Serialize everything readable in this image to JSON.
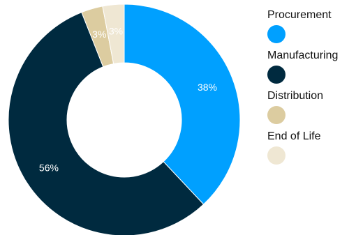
{
  "chart_data": {
    "type": "pie",
    "donut": true,
    "legend_position": "right",
    "slices": [
      {
        "name": "Procurement",
        "value": 38,
        "label": "38%",
        "color": "#00a0ff",
        "label_color": "#ffffff"
      },
      {
        "name": "Manufacturing",
        "value": 56,
        "label": "56%",
        "color": "#002a3f",
        "label_color": "#ffffff"
      },
      {
        "name": "Distribution",
        "value": 3,
        "label": "3%",
        "color": "#dccca0",
        "label_color": "#ffffff"
      },
      {
        "name": "End of Life",
        "value": 3,
        "label": "3%",
        "color": "#efe7d3",
        "label_color": "#ffffff"
      }
    ]
  }
}
